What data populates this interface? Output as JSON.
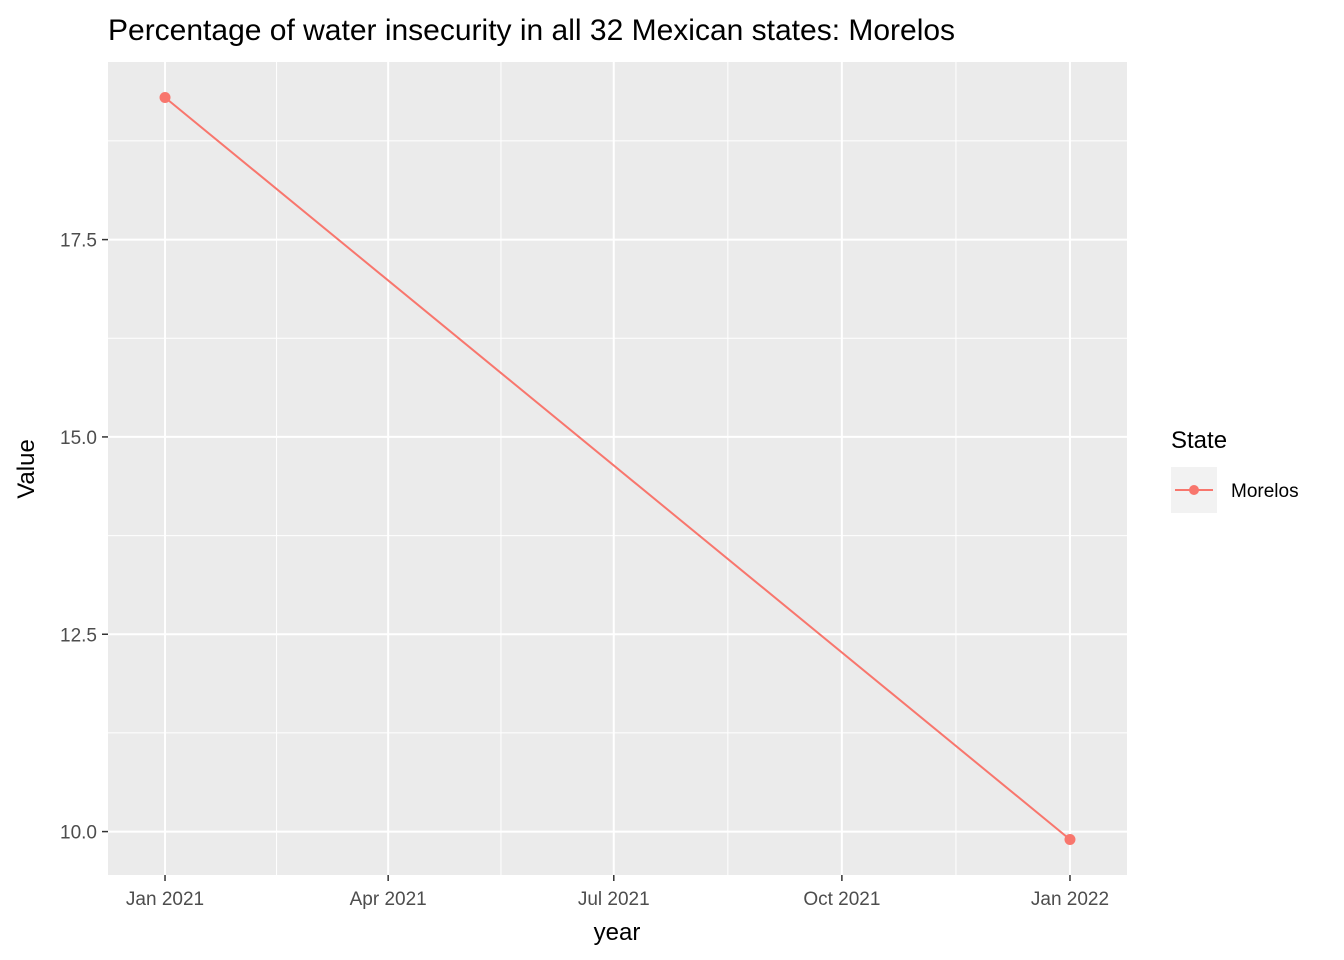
{
  "chart_data": {
    "type": "line",
    "title": "Percentage of water insecurity in all 32 Mexican states: Morelos",
    "xlabel": "year",
    "ylabel": "Value",
    "x_ticks": [
      {
        "date": "2021-01-01",
        "label": "Jan 2021"
      },
      {
        "date": "2021-04-01",
        "label": "Apr 2021"
      },
      {
        "date": "2021-07-01",
        "label": "Jul 2021"
      },
      {
        "date": "2021-10-01",
        "label": "Oct 2021"
      },
      {
        "date": "2022-01-01",
        "label": "Jan 2022"
      }
    ],
    "y_ticks": [
      10.0,
      12.5,
      15.0,
      17.5
    ],
    "y_tick_labels": [
      "10.0",
      "12.5",
      "15.0",
      "17.5"
    ],
    "xlim": [
      "2020-12-09",
      "2022-01-24"
    ],
    "ylim": [
      9.45,
      19.75
    ],
    "grid": true,
    "legend": {
      "title": "State",
      "position": "right"
    },
    "series": [
      {
        "name": "Morelos",
        "color": "#F8766D",
        "points": [
          {
            "x": "2021-01-01",
            "y": 19.3
          },
          {
            "x": "2022-01-01",
            "y": 9.9
          }
        ]
      }
    ]
  }
}
